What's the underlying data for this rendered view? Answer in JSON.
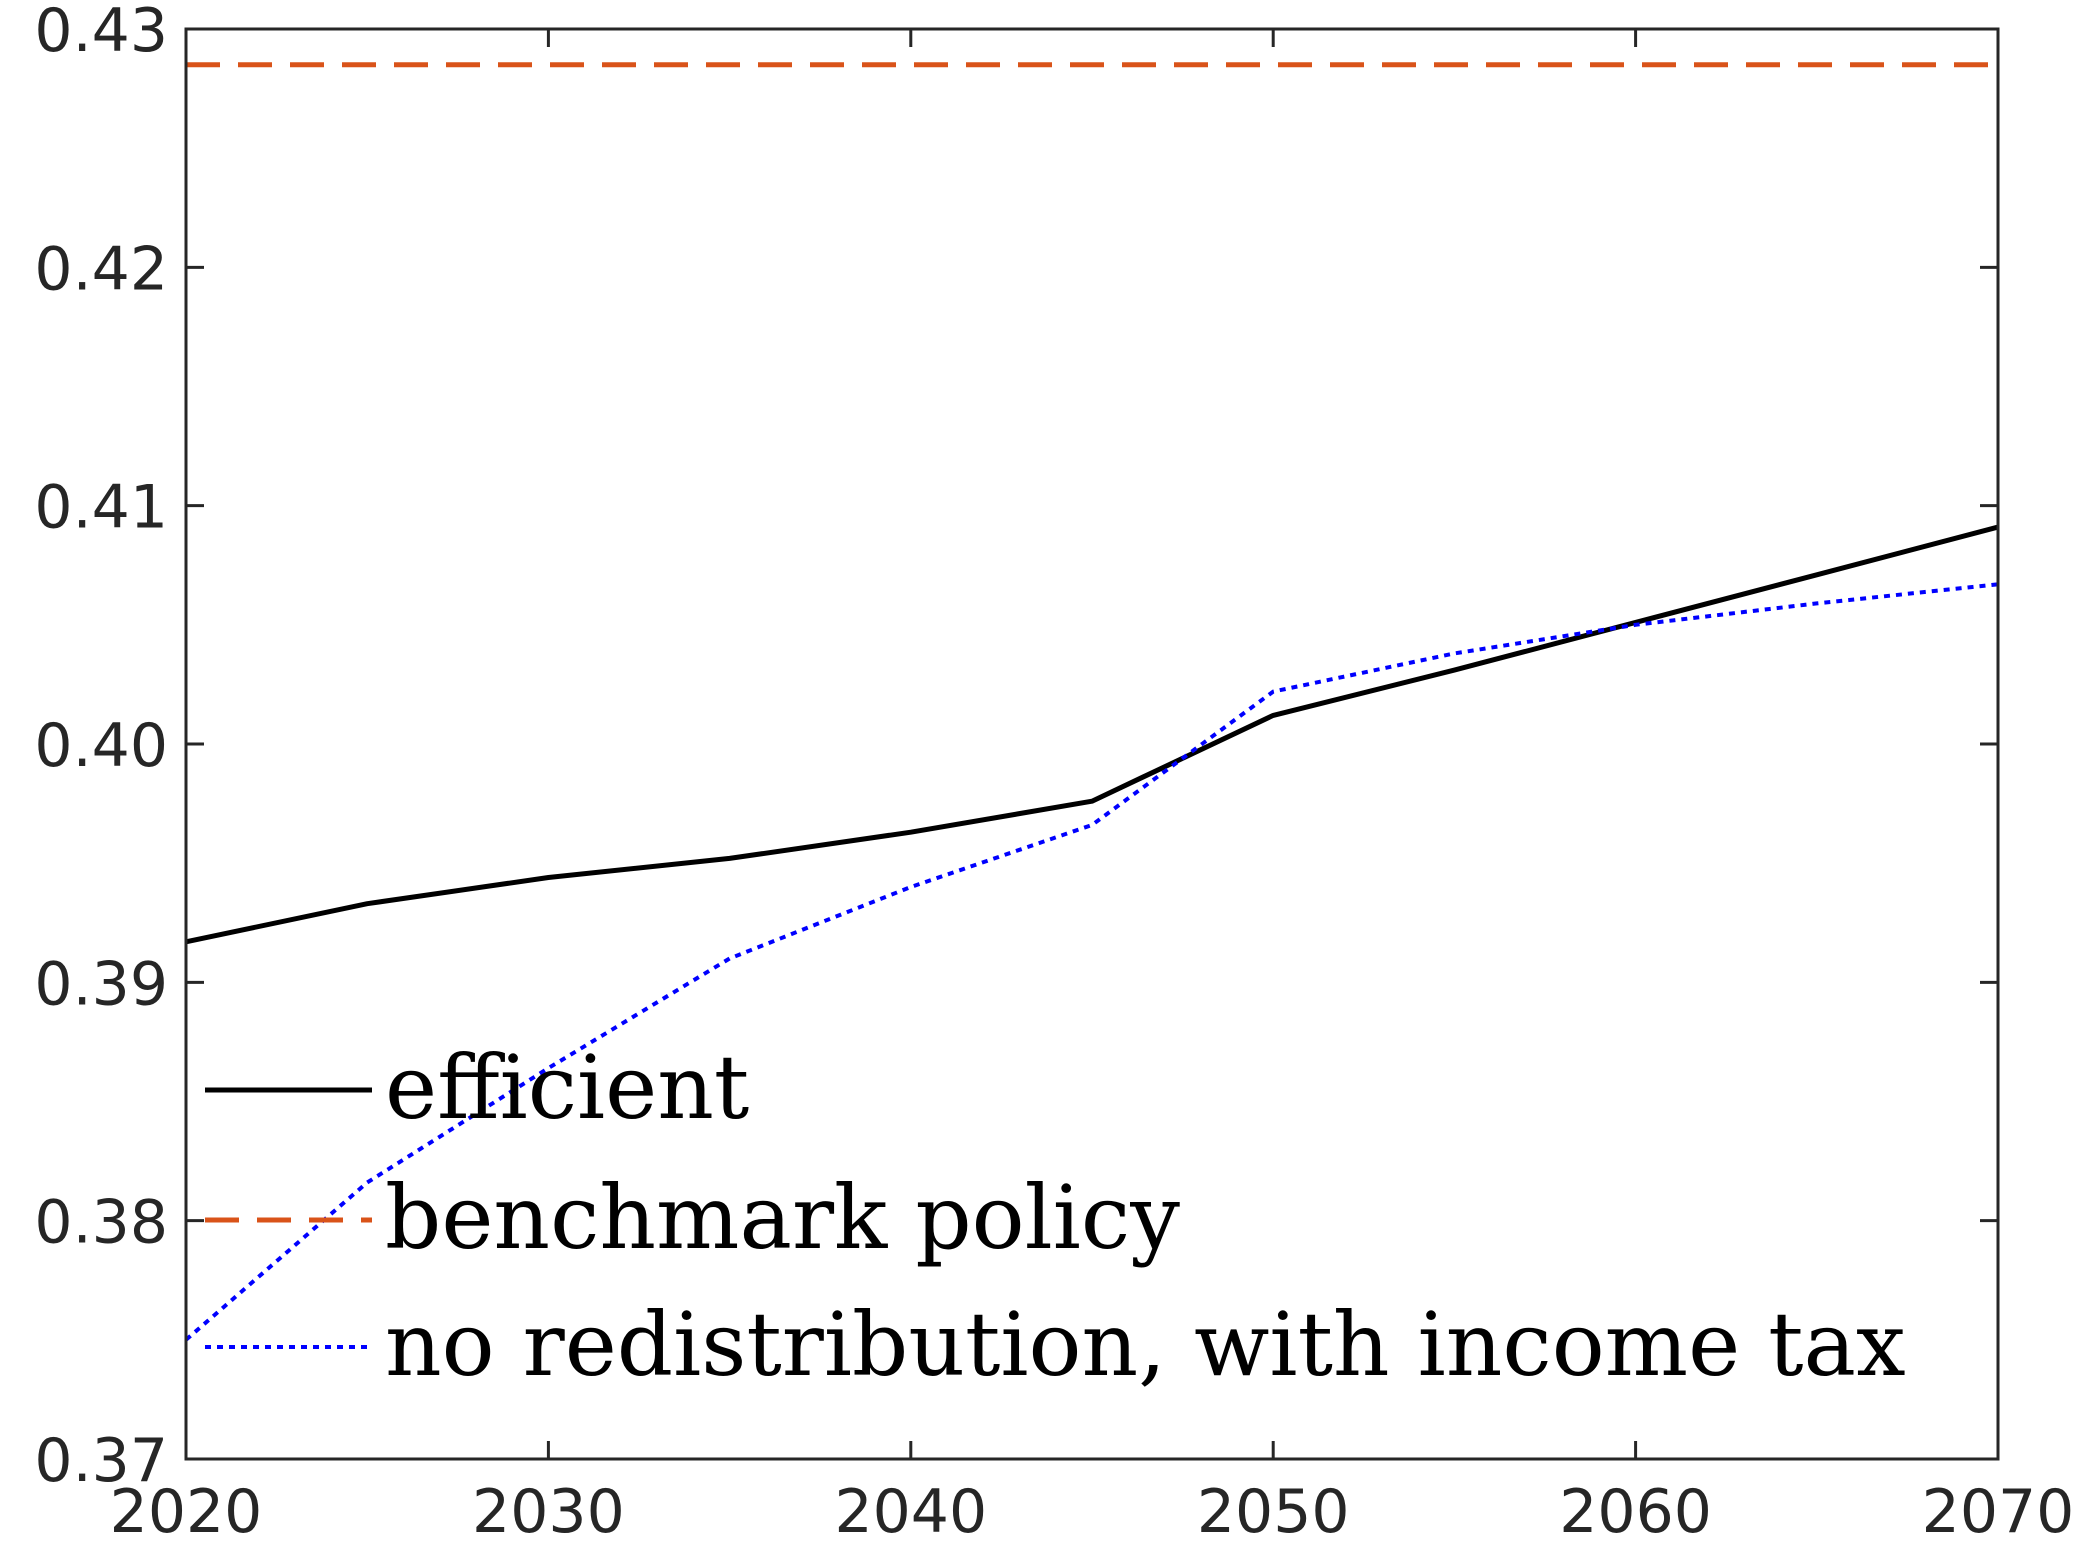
{
  "chart_data": {
    "type": "line",
    "title": "",
    "xlabel": "",
    "ylabel": "",
    "xlim": [
      2020,
      2070
    ],
    "ylim": [
      0.37,
      0.43
    ],
    "grid": false,
    "legend_position": "bottom-left",
    "x_ticks": [
      "2020",
      "2030",
      "2040",
      "2050",
      "2060",
      "2070"
    ],
    "y_ticks": [
      "0.37",
      "0.38",
      "0.39",
      "0.40",
      "0.41",
      "0.42",
      "0.43"
    ],
    "series": [
      {
        "name": "efficient",
        "style": "solid",
        "color": "#000000",
        "x": [
          2020,
          2025,
          2030,
          2035,
          2040,
          2045,
          2050,
          2055,
          2060,
          2065,
          2070
        ],
        "values": [
          0.3917,
          0.3933,
          0.3944,
          0.3952,
          0.3963,
          0.3976,
          0.4012,
          0.4031,
          0.4051,
          0.4071,
          0.4091
        ]
      },
      {
        "name": "benchmark policy",
        "style": "dashed",
        "color": "#D95319",
        "x": [
          2020,
          2070
        ],
        "values": [
          0.4285,
          0.4285
        ]
      },
      {
        "name": "no redistribution, with income tax",
        "style": "dotted",
        "color": "#0000FF",
        "x": [
          2020,
          2025,
          2030,
          2035,
          2040,
          2045,
          2050,
          2055,
          2060,
          2065,
          2070
        ],
        "values": [
          0.375,
          0.3816,
          0.3864,
          0.391,
          0.394,
          0.3966,
          0.4022,
          0.4038,
          0.405,
          0.4059,
          0.4067
        ]
      }
    ]
  }
}
